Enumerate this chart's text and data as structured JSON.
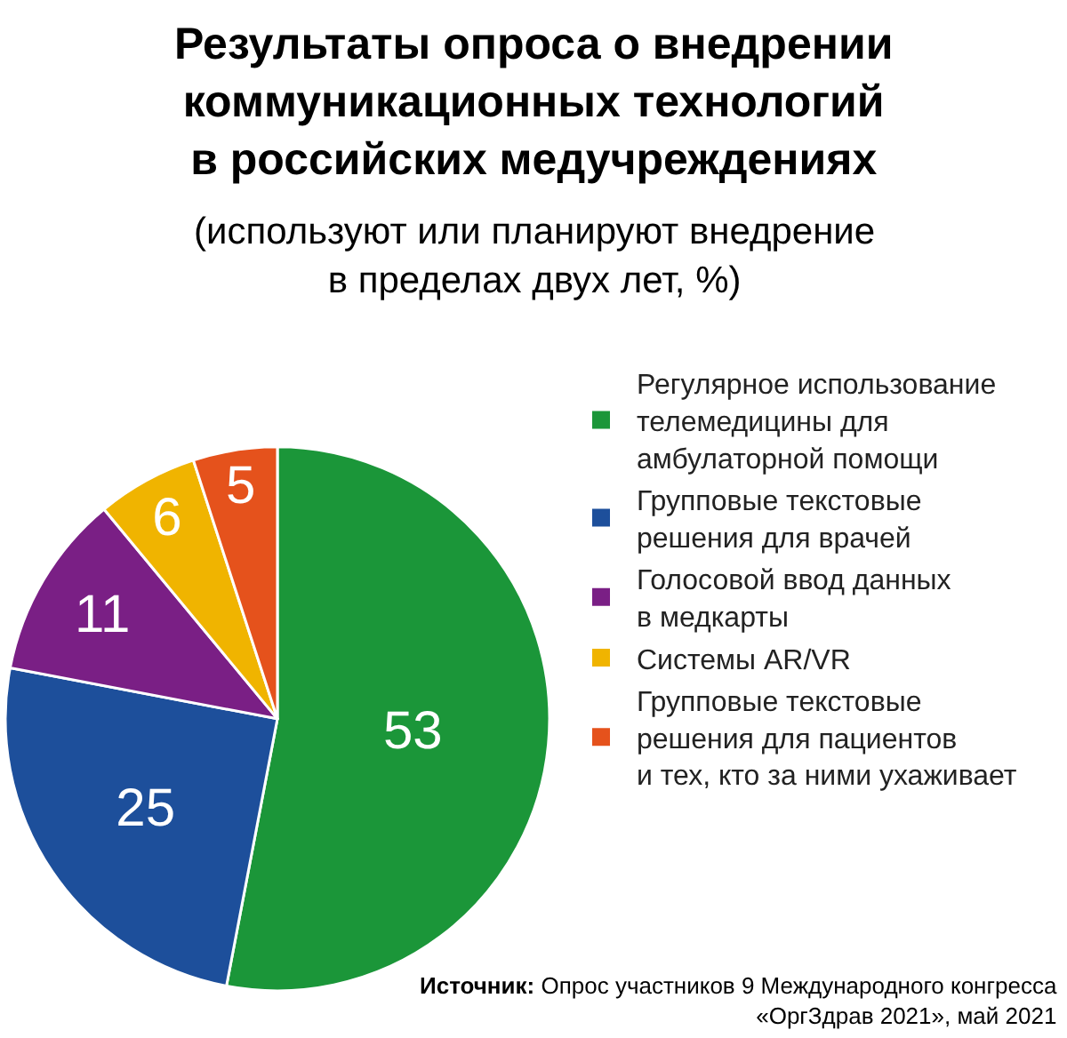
{
  "chart_data": {
    "type": "pie",
    "title": "Результаты опроса о внедрении\nкоммуникационных технологий\nв российских медучреждениях",
    "subtitle": "(используют или планируют внедрение\nв пределах двух лет, %)",
    "categories": [
      "Регулярное использование\nтелемедицины для\nамбулаторной помощи",
      "Групповые текстовые\nрешения для врачей",
      "Голосовой ввод данных\nв медкарты",
      "Системы AR/VR",
      "Групповые текстовые\nрешения для пациентов\nи тех, кто за ними ухаживает"
    ],
    "values": [
      53,
      25,
      11,
      6,
      5
    ],
    "colors": [
      "#1b9639",
      "#1d4f9b",
      "#7a1f85",
      "#f0b400",
      "#e5521c"
    ],
    "data_labels": true,
    "legend": "right",
    "annotations": [
      "Источник: Опрос участников 9 Международного конгресса\n«ОргЗдрав 2021», май 2021"
    ]
  }
}
